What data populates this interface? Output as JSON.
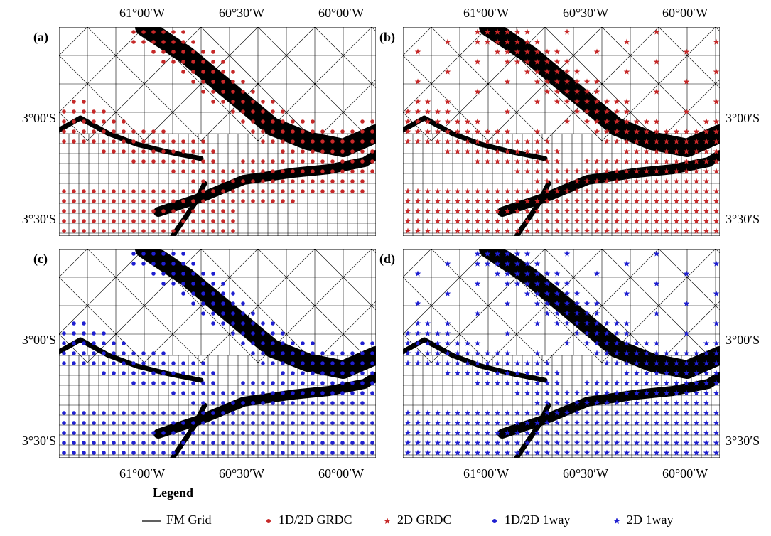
{
  "panels": [
    {
      "label": "(a)"
    },
    {
      "label": "(b)"
    },
    {
      "label": "(c)"
    },
    {
      "label": "(d)"
    }
  ],
  "axis_labels": {
    "lon": [
      "61°00′W",
      "60°30′W",
      "60°00′W"
    ],
    "lat": [
      "3°00′S",
      "3°30′S"
    ]
  },
  "legend": {
    "title": "Legend",
    "items": [
      "FM Grid",
      "1D/2D GRDC",
      "2D GRDC",
      "1D/2D 1way",
      "2D 1way"
    ]
  }
}
